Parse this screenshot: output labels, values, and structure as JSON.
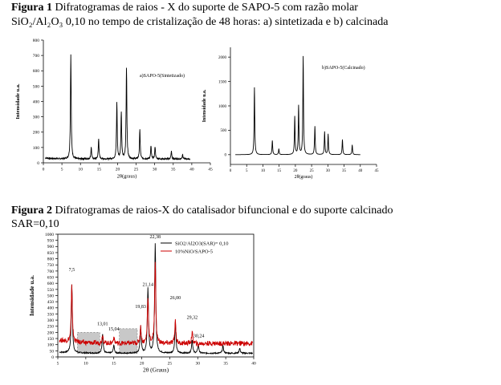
{
  "captions": {
    "fig1_label": "Figura 1",
    "fig1_line1": " Difratogramas de raios - X do suporte de SAPO-5 com razão molar",
    "fig1_line2": "SiO₂/Al₂O₃  0,10 no tempo de cristalização de 48 horas: a) sintetizada e b) calcinada",
    "fig2_label": "Figura 2",
    "fig2_line1": " Difratogramas de raios-X do catalisador bifuncional e do suporte calcinado",
    "fig2_line2": "SAR=0,10"
  },
  "chart_data": [
    {
      "type": "line",
      "title": "a)SAPO-5(Sintetizado)",
      "xlabel": "2θ(graus)",
      "ylabel": "Intensidade u.a.",
      "xlim": [
        0,
        45
      ],
      "ylim": [
        0,
        800
      ],
      "xticks": [
        0,
        5,
        10,
        15,
        20,
        25,
        30,
        35,
        40,
        45
      ],
      "yticks": [
        0,
        100,
        200,
        300,
        400,
        500,
        600,
        700,
        800
      ],
      "baseline": 25,
      "peaks": [
        {
          "x": 7.4,
          "y": 710
        },
        {
          "x": 12.9,
          "y": 100
        },
        {
          "x": 14.9,
          "y": 155
        },
        {
          "x": 19.8,
          "y": 390
        },
        {
          "x": 21.0,
          "y": 330
        },
        {
          "x": 22.4,
          "y": 620
        },
        {
          "x": 26.0,
          "y": 215
        },
        {
          "x": 29.0,
          "y": 110
        },
        {
          "x": 30.1,
          "y": 105
        },
        {
          "x": 34.5,
          "y": 75
        },
        {
          "x": 37.5,
          "y": 55
        }
      ],
      "color": "#000000"
    },
    {
      "type": "line",
      "title": "b)SAPO-5(Calcinado)",
      "xlabel": "2θ(graus)",
      "ylabel": "Intensidade u.a.",
      "xlim": [
        0,
        45
      ],
      "ylim": [
        -200,
        2200
      ],
      "xticks": [
        0,
        5,
        10,
        15,
        20,
        25,
        30,
        35,
        40,
        45
      ],
      "yticks": [
        0,
        500,
        1000,
        1500,
        2000
      ],
      "baseline": 0,
      "peaks": [
        {
          "x": 7.4,
          "y": 1380
        },
        {
          "x": 12.9,
          "y": 290
        },
        {
          "x": 14.9,
          "y": 120
        },
        {
          "x": 19.8,
          "y": 780
        },
        {
          "x": 21.0,
          "y": 1000
        },
        {
          "x": 22.4,
          "y": 2010
        },
        {
          "x": 26.0,
          "y": 580
        },
        {
          "x": 29.0,
          "y": 470
        },
        {
          "x": 30.1,
          "y": 420
        },
        {
          "x": 34.5,
          "y": 310
        },
        {
          "x": 37.5,
          "y": 200
        }
      ],
      "color": "#000000"
    },
    {
      "type": "line",
      "xlabel": "2θ (Graus)",
      "ylabel": "Intensidade u.a.",
      "xlim": [
        5,
        40
      ],
      "ylim": [
        0,
        1000
      ],
      "xticks": [
        5,
        10,
        15,
        20,
        25,
        30,
        35,
        40
      ],
      "yticks": [
        0,
        50,
        100,
        150,
        200,
        250,
        300,
        350,
        400,
        450,
        500,
        550,
        600,
        650,
        700,
        750,
        800,
        850,
        900,
        950,
        1000
      ],
      "legend": "top-right",
      "series": [
        {
          "name": "SiO2/Al2O3(SAR)= 0,10",
          "color": "#000000",
          "baseline": 30,
          "peaks": [
            {
              "x": 7.5,
              "y": 590
            },
            {
              "x": 13.0,
              "y": 190
            },
            {
              "x": 15.0,
              "y": 95
            },
            {
              "x": 19.8,
              "y": 250
            },
            {
              "x": 21.1,
              "y": 560
            },
            {
              "x": 22.4,
              "y": 920
            },
            {
              "x": 26.0,
              "y": 290
            },
            {
              "x": 29.0,
              "y": 140
            },
            {
              "x": 30.1,
              "y": 100
            },
            {
              "x": 34.5,
              "y": 90
            },
            {
              "x": 37.5,
              "y": 70
            }
          ]
        },
        {
          "name": "10%NiO/SAPO-5",
          "color": "#cc0000",
          "baseline": 110,
          "peaks": [
            {
              "x": 7.5,
              "y": 560
            },
            {
              "x": 13.0,
              "y": 180
            },
            {
              "x": 15.0,
              "y": 160
            },
            {
              "x": 19.8,
              "y": 240
            },
            {
              "x": 21.1,
              "y": 490
            },
            {
              "x": 22.4,
              "y": 780
            },
            {
              "x": 26.0,
              "y": 300
            },
            {
              "x": 29.0,
              "y": 200
            },
            {
              "x": 30.1,
              "y": 95
            }
          ]
        }
      ],
      "annotations": [
        {
          "label": "7,5",
          "x": 7.5,
          "y": 700
        },
        {
          "label": "13,01",
          "x": 13.0,
          "y": 258
        },
        {
          "label": "15,04",
          "x": 15.0,
          "y": 215
        },
        {
          "label": "19,83",
          "x": 19.8,
          "y": 398
        },
        {
          "label": "21,14",
          "x": 21.1,
          "y": 580
        },
        {
          "label": "22,38",
          "x": 22.4,
          "y": 968
        },
        {
          "label": "26,00",
          "x": 26.0,
          "y": 470
        },
        {
          "label": "29,32",
          "x": 29.0,
          "y": 310
        },
        {
          "label": "30,24",
          "x": 30.2,
          "y": 160
        }
      ],
      "shaded_regions": [
        {
          "x0": 8.5,
          "x1": 12.5,
          "y0": 30,
          "y1": 200
        },
        {
          "x0": 16.0,
          "x1": 19.2,
          "y0": 30,
          "y1": 230
        }
      ]
    }
  ]
}
